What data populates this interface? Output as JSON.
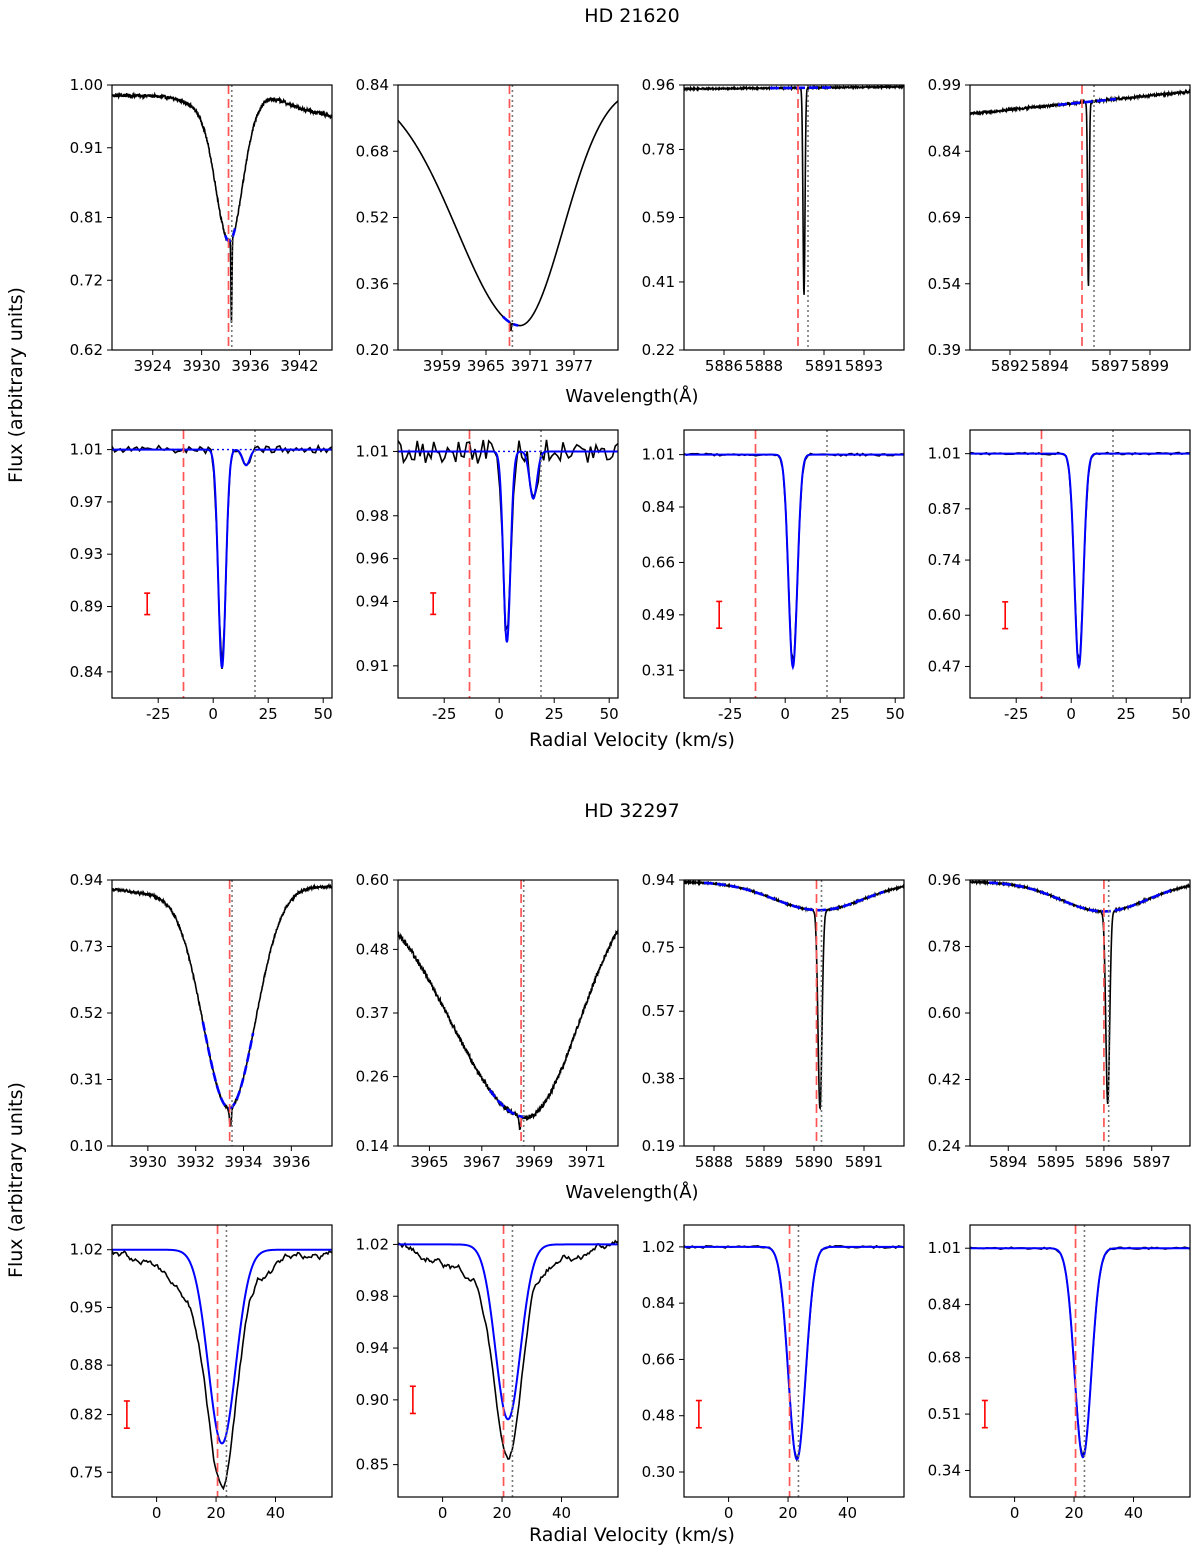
{
  "figure": {
    "ylabel_text": "Flux (arbitrary units)",
    "colors": {
      "data": "#000000",
      "fit": "#0000ff",
      "red_ref": "#ff5555",
      "grey_ref": "#777777",
      "errorbar": "#ff0000"
    }
  },
  "chart_data": [
    {
      "type": "line",
      "title": "HD 21620",
      "top_xlabel": "Wavelength(Å)",
      "bottom_xlabel": "Radial Velocity (km/s)",
      "ylabel": "Flux (arbitrary units)",
      "top_panels": [
        {
          "xlim": [
            3919,
            3946
          ],
          "ylim": [
            0.62,
            1.0
          ],
          "xticks": [
            3924,
            3930,
            3936,
            3942
          ],
          "yticks": [
            "1.00",
            "0.91",
            "0.81",
            "0.72",
            "0.62"
          ],
          "spec": {
            "kind": "broad",
            "center": 3933.4,
            "depth": 0.21,
            "width": 1.6,
            "base": 0.985,
            "left_slope": 0.0,
            "right_drop": 0.03,
            "wing_bump": 0.0,
            "narrow_at": 3933.66,
            "narrow_depth": 0.12,
            "narrow_width": 0.06,
            "noise": 0.0025
          },
          "fit_range": [
            3932.9,
            3934.1
          ],
          "red_line": 3933.3,
          "grey_line": 3933.7
        },
        {
          "xlim": [
            3953,
            3983
          ],
          "ylim": [
            0.2,
            0.84
          ],
          "xticks": [
            3959,
            3965,
            3971,
            3977
          ],
          "yticks": [
            "0.84",
            "0.68",
            "0.52",
            "0.36",
            "0.20"
          ],
          "spec": {
            "kind": "wing",
            "center": 3969.6,
            "depth": 0.57,
            "width": 5.5,
            "base": 0.84,
            "left_slope": 0.0,
            "right_drop": 0.02,
            "wing_bump": 0.0,
            "narrow_at": 3968.4,
            "narrow_depth": 0.02,
            "narrow_width": 0.05,
            "noise": 0.0
          },
          "fit_range": [
            3967.3,
            3969.4
          ],
          "red_line": 3968.2,
          "grey_line": 3968.6
        },
        {
          "xlim": [
            5884,
            5895
          ],
          "ylim": [
            0.22,
            0.96
          ],
          "xticks": [
            5886,
            5888,
            5891,
            5893
          ],
          "yticks": [
            "0.96",
            "0.78",
            "0.59",
            "0.41",
            "0.22"
          ],
          "spec": {
            "kind": "flat",
            "center": 5889.95,
            "depth": 0.0,
            "width": 1.0,
            "base": 0.955,
            "left_slope": 0.0,
            "right_drop": 0.0,
            "wing_bump": 0.0,
            "narrow_at": 5890.0,
            "narrow_depth": 0.58,
            "narrow_width": 0.05,
            "noise": 0.0018
          },
          "fit_range": [
            5888.3,
            5891.4
          ],
          "red_line": 5889.7,
          "grey_line": 5890.2
        },
        {
          "xlim": [
            5890,
            5901
          ],
          "ylim": [
            0.39,
            0.99
          ],
          "xticks": [
            5892,
            5894,
            5897,
            5899
          ],
          "yticks": [
            "0.99",
            "0.84",
            "0.69",
            "0.54",
            "0.39"
          ],
          "spec": {
            "kind": "slope",
            "center": 5895.9,
            "depth": 0.0,
            "width": 1.0,
            "base": 0.925,
            "left_slope": 0.005,
            "right_drop": 0.0,
            "wing_bump": 0.0,
            "narrow_at": 5895.92,
            "narrow_depth": 0.42,
            "narrow_width": 0.04,
            "noise": 0.0025
          },
          "fit_range": [
            5894.4,
            5897.3
          ],
          "red_line": 5895.6,
          "grey_line": 5896.2
        }
      ],
      "bottom_panels": [
        {
          "xlim": [
            -46,
            54
          ],
          "ylim": [
            0.82,
            1.025
          ],
          "xticks": [
            -25,
            0,
            25,
            50
          ],
          "yticks": [
            "1.01",
            "0.97",
            "0.93",
            "0.89",
            "0.84"
          ],
          "comps": [
            {
              "v": 4.0,
              "depth": 0.167,
              "sigma": 1.7
            },
            {
              "v": 15.0,
              "depth": 0.012,
              "sigma": 1.6
            }
          ],
          "noise": 0.003,
          "noise_end_smooth": false,
          "red_line": -13.5,
          "grey_line": 19.0,
          "errbar": {
            "x": -30,
            "y": 0.892,
            "half": 0.004
          }
        },
        {
          "xlim": [
            -46,
            54
          ],
          "ylim": [
            0.895,
            1.02
          ],
          "xticks": [
            -25,
            0,
            25,
            50
          ],
          "yticks": [
            "1.01",
            "0.98",
            "0.96",
            "0.94",
            "0.91"
          ],
          "comps": [
            {
              "v": 3.5,
              "depth": 0.089,
              "sigma": 1.6
            },
            {
              "v": 15.5,
              "depth": 0.022,
              "sigma": 1.7
            }
          ],
          "noise": 0.006,
          "noise_end_smooth": false,
          "red_line": -13.5,
          "grey_line": 19.0,
          "errbar": {
            "x": -30,
            "y": 0.939,
            "half": 0.004
          }
        },
        {
          "xlim": [
            -46,
            54
          ],
          "ylim": [
            0.22,
            1.09
          ],
          "xticks": [
            -25,
            0,
            25,
            50
          ],
          "yticks": [
            "1.01",
            "0.84",
            "0.66",
            "0.49",
            "0.31"
          ],
          "comps": [
            {
              "v": 3.5,
              "depth": 0.69,
              "sigma": 2.0
            }
          ],
          "noise": 0.004,
          "noise_end_smooth": false,
          "red_line": -13.5,
          "grey_line": 19.0,
          "errbar": {
            "x": -30,
            "y": 0.49,
            "half": 0.005
          }
        },
        {
          "xlim": [
            -46,
            54
          ],
          "ylim": [
            0.39,
            1.07
          ],
          "xticks": [
            -25,
            0,
            25,
            50
          ],
          "yticks": [
            "1.01",
            "0.87",
            "0.74",
            "0.60",
            "0.47"
          ],
          "comps": [
            {
              "v": 3.5,
              "depth": 0.54,
              "sigma": 2.0
            }
          ],
          "noise": 0.003,
          "noise_end_smooth": false,
          "red_line": -13.5,
          "grey_line": 19.0,
          "errbar": {
            "x": -30,
            "y": 0.6,
            "half": 0.005
          }
        }
      ]
    },
    {
      "type": "line",
      "title": "HD 32297",
      "top_xlabel": "Wavelength(Å)",
      "bottom_xlabel": "Radial Velocity (km/s)",
      "ylabel": "Flux (arbitrary units)",
      "top_panels": [
        {
          "xlim": [
            3928.5,
            3937.7
          ],
          "ylim": [
            0.1,
            0.94
          ],
          "xticks": [
            3930,
            3932,
            3934,
            3936
          ],
          "yticks": [
            "0.94",
            "0.73",
            "0.52",
            "0.31",
            "0.10"
          ],
          "spec": {
            "kind": "deep",
            "center": 3933.4,
            "depth": 0.7,
            "width": 1.1,
            "base": 0.92,
            "left_slope": 0.0,
            "right_drop": 0.0,
            "wing_bump": 0.0,
            "narrow_at": 3933.45,
            "narrow_depth": 0.06,
            "narrow_width": 0.04,
            "noise": 0.004
          },
          "fit_range": [
            3932.3,
            3934.4
          ],
          "red_line": 3933.42,
          "grey_line": 3933.52
        },
        {
          "xlim": [
            3963.8,
            3972.2
          ],
          "ylim": [
            0.14,
            0.6
          ],
          "xticks": [
            3965,
            3967,
            3969,
            3971
          ],
          "yticks": [
            "0.60",
            "0.48",
            "0.37",
            "0.26",
            "0.14"
          ],
          "spec": {
            "kind": "wing2",
            "center": 3968.7,
            "depth": 0.41,
            "width": 2.1,
            "base": 0.6,
            "left_slope": 0.0,
            "right_drop": 0.0,
            "wing_bump": 0.0,
            "narrow_at": 3968.45,
            "narrow_depth": 0.02,
            "narrow_width": 0.04,
            "noise": 0.004
          },
          "fit_range": [
            3967.3,
            3968.6
          ],
          "red_line": 3968.5,
          "grey_line": 3968.6
        },
        {
          "xlim": [
            5887.4,
            5891.8
          ],
          "ylim": [
            0.19,
            0.94
          ],
          "xticks": [
            5888,
            5889,
            5890,
            5891
          ],
          "yticks": [
            "0.94",
            "0.75",
            "0.57",
            "0.38",
            "0.19"
          ],
          "spec": {
            "kind": "dip",
            "center": 5890.1,
            "depth": 0.08,
            "width": 0.9,
            "base": 0.935,
            "left_slope": 0.0,
            "right_drop": 0.0,
            "wing_bump": 0.0,
            "narrow_at": 5890.12,
            "narrow_depth": 0.56,
            "narrow_width": 0.04,
            "noise": 0.002
          },
          "fit_range": [
            5887.8,
            5891.4
          ],
          "red_line": 5890.05,
          "grey_line": 5890.15
        },
        {
          "xlim": [
            5893.2,
            5897.8
          ],
          "ylim": [
            0.24,
            0.96
          ],
          "xticks": [
            5894,
            5895,
            5896,
            5897
          ],
          "yticks": [
            "0.96",
            "0.78",
            "0.60",
            "0.42",
            "0.24"
          ],
          "spec": {
            "kind": "dip",
            "center": 5896.0,
            "depth": 0.08,
            "width": 0.9,
            "base": 0.955,
            "left_slope": 0.0,
            "right_drop": 0.0,
            "wing_bump": 0.0,
            "narrow_at": 5896.08,
            "narrow_depth": 0.52,
            "narrow_width": 0.04,
            "noise": 0.002
          },
          "fit_range": [
            5893.6,
            5897.4
          ],
          "red_line": 5896.0,
          "grey_line": 5896.1
        }
      ],
      "bottom_panels": [
        {
          "xlim": [
            -15,
            59
          ],
          "ylim": [
            0.72,
            1.05
          ],
          "xticks": [
            0,
            20,
            40
          ],
          "yticks": [
            "1.02",
            "0.95",
            "0.88",
            "0.82",
            "0.75"
          ],
          "comps": [
            {
              "v": 22.0,
              "depth": 0.235,
              "sigma": 4.6
            }
          ],
          "noise": 0.012,
          "noise_end_smooth": true,
          "red_line": 20.5,
          "grey_line": 23.5,
          "errbar": {
            "x": -10,
            "y": 0.82,
            "half": 0.005
          }
        },
        {
          "xlim": [
            -15,
            59
          ],
          "ylim": [
            0.825,
            1.035
          ],
          "xticks": [
            0,
            20,
            40
          ],
          "yticks": [
            "1.02",
            "0.98",
            "0.94",
            "0.90",
            "0.85"
          ],
          "comps": [
            {
              "v": 22.0,
              "depth": 0.135,
              "sigma": 4.2
            }
          ],
          "noise": 0.008,
          "noise_end_smooth": true,
          "red_line": 20.5,
          "grey_line": 23.5,
          "errbar": {
            "x": -10,
            "y": 0.9,
            "half": 0.005
          }
        },
        {
          "xlim": [
            -15,
            59
          ],
          "ylim": [
            0.22,
            1.09
          ],
          "xticks": [
            0,
            20,
            40
          ],
          "yticks": [
            "1.02",
            "0.84",
            "0.66",
            "0.48",
            "0.30"
          ],
          "comps": [
            {
              "v": 23.0,
              "depth": 0.68,
              "sigma": 2.9
            }
          ],
          "noise": 0.004,
          "noise_end_smooth": false,
          "red_line": 20.5,
          "grey_line": 23.5,
          "errbar": {
            "x": -10,
            "y": 0.485,
            "half": 0.005
          }
        },
        {
          "xlim": [
            -15,
            59
          ],
          "ylim": [
            0.26,
            1.08
          ],
          "xticks": [
            0,
            20,
            40
          ],
          "yticks": [
            "1.01",
            "0.84",
            "0.68",
            "0.51",
            "0.34"
          ],
          "comps": [
            {
              "v": 23.0,
              "depth": 0.63,
              "sigma": 2.8
            }
          ],
          "noise": 0.003,
          "noise_end_smooth": false,
          "red_line": 20.5,
          "grey_line": 23.5,
          "errbar": {
            "x": -10,
            "y": 0.51,
            "half": 0.005
          }
        }
      ]
    }
  ]
}
